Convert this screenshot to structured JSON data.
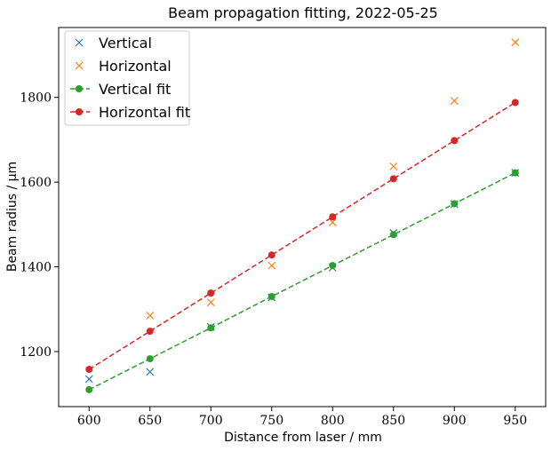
{
  "chart_data": {
    "type": "line",
    "title": "Beam propagation fitting, 2022-05-25",
    "xlabel": "Distance from laser / mm",
    "ylabel": "Beam radius / μm",
    "xlim": [
      575,
      975
    ],
    "ylim": [
      1070,
      1965
    ],
    "xticks": [
      600,
      650,
      700,
      750,
      800,
      850,
      900,
      950
    ],
    "yticks": [
      1200,
      1400,
      1600,
      1800
    ],
    "grid": false,
    "legend_position": "top-left",
    "x": [
      600,
      650,
      700,
      750,
      800,
      850,
      900,
      950
    ],
    "series": [
      {
        "name": "Vertical",
        "style": "marker-x",
        "color": "#1f77b4",
        "values": [
          1135,
          1152,
          1258,
          1328,
          1398,
          1480,
          1548,
          1622
        ]
      },
      {
        "name": "Horizontal",
        "style": "marker-x",
        "color": "#ff7f0e",
        "values": [
          null,
          1285,
          1316,
          1403,
          1505,
          1637,
          1792,
          1930
        ]
      },
      {
        "name": "Vertical fit",
        "style": "dashed-line-dots",
        "color": "#2ca02c",
        "values": [
          1110,
          1183,
          1256,
          1330,
          1403,
          1476,
          1549,
          1622
        ]
      },
      {
        "name": "Horizontal fit",
        "style": "dashed-line-dots",
        "color": "#d62728",
        "values": [
          1158,
          1248,
          1338,
          1428,
          1518,
          1608,
          1698,
          1788
        ]
      }
    ]
  }
}
